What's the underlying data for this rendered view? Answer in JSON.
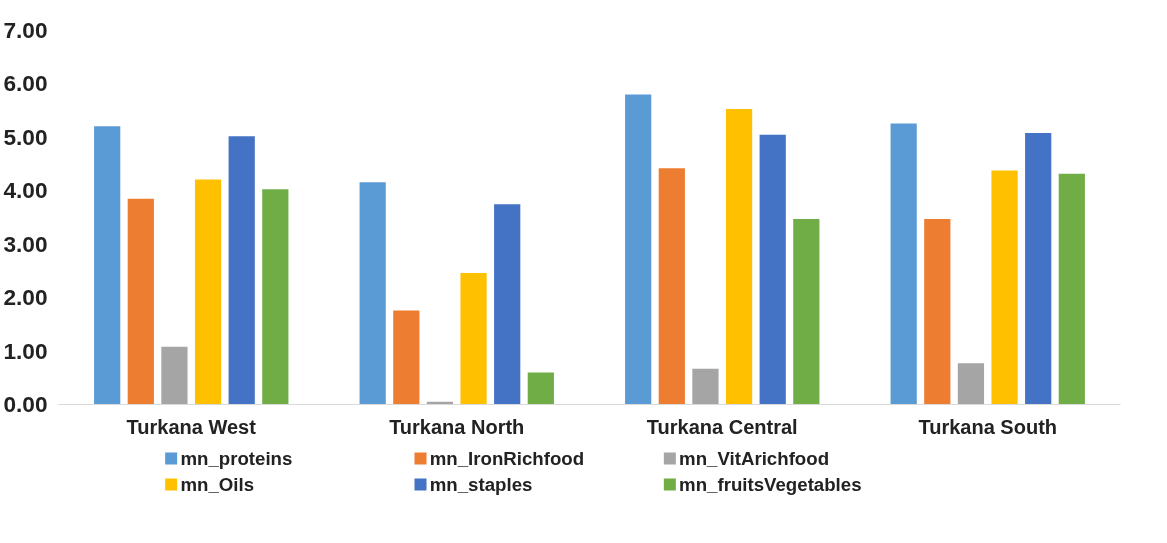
{
  "chart_data": {
    "type": "bar",
    "categories": [
      "Turkana West",
      "Turkana North",
      "Turkana Central",
      "Turkana South"
    ],
    "series": [
      {
        "name": "mn_proteins",
        "color": "#5b9bd5",
        "values": [
          5.21,
          4.16,
          5.8,
          5.26
        ]
      },
      {
        "name": "mn_IronRichfood",
        "color": "#ed7d31",
        "values": [
          3.85,
          1.76,
          4.42,
          3.47
        ]
      },
      {
        "name": "mn_VitArichfood",
        "color": "#a5a5a5",
        "values": [
          1.08,
          0.05,
          0.67,
          0.77
        ]
      },
      {
        "name": "mn_Oils",
        "color": "#ffc000",
        "values": [
          4.21,
          2.46,
          5.53,
          4.38
        ]
      },
      {
        "name": "mn_staples",
        "color": "#4472c4",
        "values": [
          5.02,
          3.75,
          5.05,
          5.08
        ]
      },
      {
        "name": "mn_fruitsVegetables",
        "color": "#70ad47",
        "values": [
          4.03,
          0.6,
          3.47,
          4.32
        ]
      }
    ],
    "ylim": [
      0,
      7
    ],
    "yticks": [
      {
        "value": 0,
        "label": "0.00"
      },
      {
        "value": 1,
        "label": "1.00"
      },
      {
        "value": 2,
        "label": "2.00"
      },
      {
        "value": 3,
        "label": "3.00"
      },
      {
        "value": 4,
        "label": "4.00"
      },
      {
        "value": 5,
        "label": "5.00"
      },
      {
        "value": 6,
        "label": "6.00"
      },
      {
        "value": 7,
        "label": "7.00"
      }
    ],
    "grid": false,
    "legend": "bottom"
  }
}
